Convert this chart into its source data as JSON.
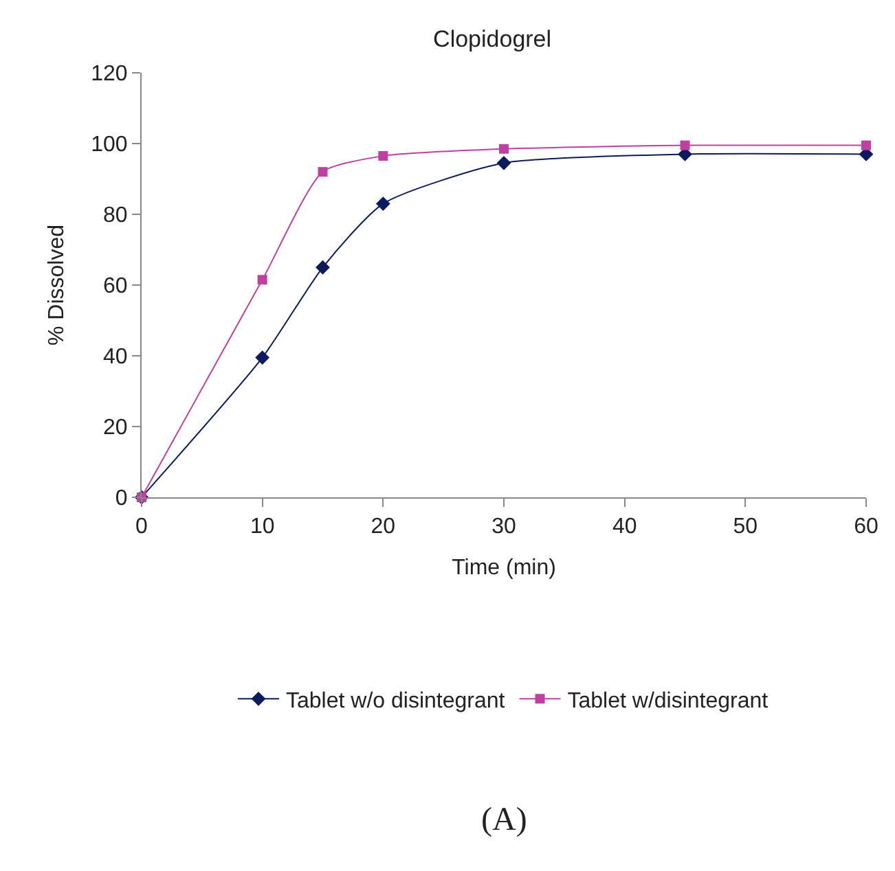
{
  "chart_data": {
    "type": "line",
    "title": "Clopidogrel",
    "xlabel": "Time (min)",
    "ylabel": "% Dissolved",
    "x": [
      0,
      10,
      15,
      20,
      30,
      45,
      60
    ],
    "series": [
      {
        "name": "Tablet w/o disintegrant",
        "color": "#0d1a5e",
        "marker": "diamond",
        "values": [
          0,
          39.5,
          65,
          83,
          94.5,
          97,
          97
        ]
      },
      {
        "name": "Tablet w/disintegrant",
        "color": "#c040a0",
        "marker": "square",
        "values": [
          0,
          61.5,
          92,
          96.5,
          98.5,
          99.5,
          99.5
        ]
      }
    ],
    "xlim": [
      0,
      60
    ],
    "xticks": [
      0,
      10,
      20,
      30,
      40,
      50,
      60
    ],
    "ylim": [
      0,
      120
    ],
    "yticks": [
      0,
      20,
      40,
      60,
      80,
      100,
      120
    ],
    "legend": "bottom",
    "line_style": "solid",
    "annotations": [
      "(A)"
    ]
  }
}
